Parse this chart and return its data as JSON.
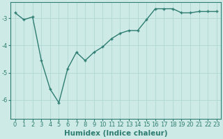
{
  "x": [
    0,
    1,
    2,
    3,
    4,
    5,
    6,
    7,
    8,
    9,
    10,
    11,
    12,
    13,
    14,
    15,
    16,
    17,
    18,
    19,
    20,
    21,
    22,
    23
  ],
  "y": [
    -2.8,
    -3.05,
    -2.95,
    -4.55,
    -5.6,
    -6.1,
    -4.85,
    -4.25,
    -4.55,
    -4.25,
    -4.05,
    -3.75,
    -3.55,
    -3.45,
    -3.45,
    -3.05,
    -2.65,
    -2.65,
    -2.65,
    -2.8,
    -2.8,
    -2.75,
    -2.75,
    -2.75
  ],
  "line_color": "#2e7d72",
  "marker": "+",
  "markersize": 3.5,
  "linewidth": 1.0,
  "markeredgewidth": 1.0,
  "xlabel": "Humidex (Indice chaleur)",
  "xlim": [
    -0.5,
    23.5
  ],
  "ylim": [
    -6.7,
    -2.4
  ],
  "yticks": [
    -6,
    -5,
    -4,
    -3
  ],
  "xtick_labels": [
    "0",
    "1",
    "2",
    "3",
    "4",
    "5",
    "6",
    "7",
    "8",
    "9",
    "10",
    "11",
    "12",
    "13",
    "14",
    "15",
    "16",
    "17",
    "18",
    "19",
    "20",
    "21",
    "22",
    "23"
  ],
  "bg_color": "#ceeae6",
  "grid_color": "#afd8d3",
  "tick_color": "#2e7d72",
  "label_color": "#2e7d72",
  "xlabel_fontsize": 7.5,
  "tick_fontsize": 6.0
}
